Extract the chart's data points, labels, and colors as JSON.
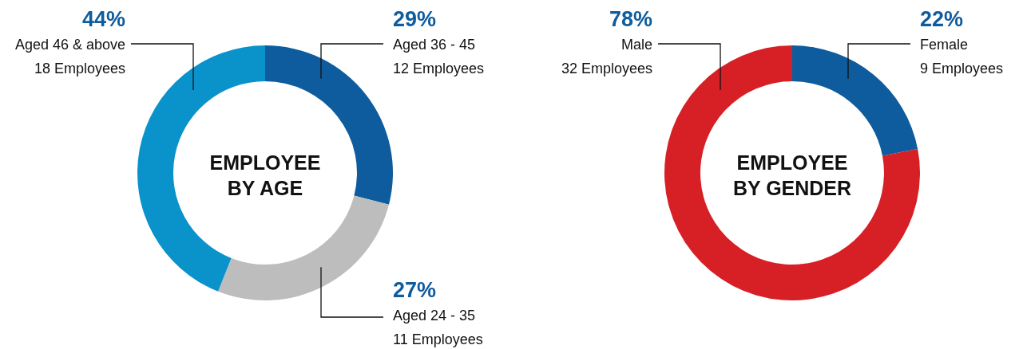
{
  "chart_data": [
    {
      "type": "donut",
      "title": "EMPLOYEE BY AGE",
      "categories": [
        "Aged 36 - 45",
        "Aged 24 - 35",
        "Aged 46 & above"
      ],
      "values": [
        29,
        27,
        44
      ],
      "value_labels": [
        "29%",
        "27%",
        "44%"
      ],
      "colors": [
        "#0e5c9e",
        "#bdbdbd",
        "#0a93cb"
      ],
      "annotations": [
        "12 Employees",
        "11 Employees",
        "18 Employees"
      ]
    },
    {
      "type": "donut",
      "title": "EMPLOYEE BY GENDER",
      "categories": [
        "Female",
        "Male"
      ],
      "values": [
        22,
        78
      ],
      "value_labels": [
        "22%",
        "78%"
      ],
      "colors": [
        "#0e5c9e",
        "#d71f26"
      ],
      "annotations": [
        "9 Employees",
        "32 Employees"
      ]
    }
  ]
}
